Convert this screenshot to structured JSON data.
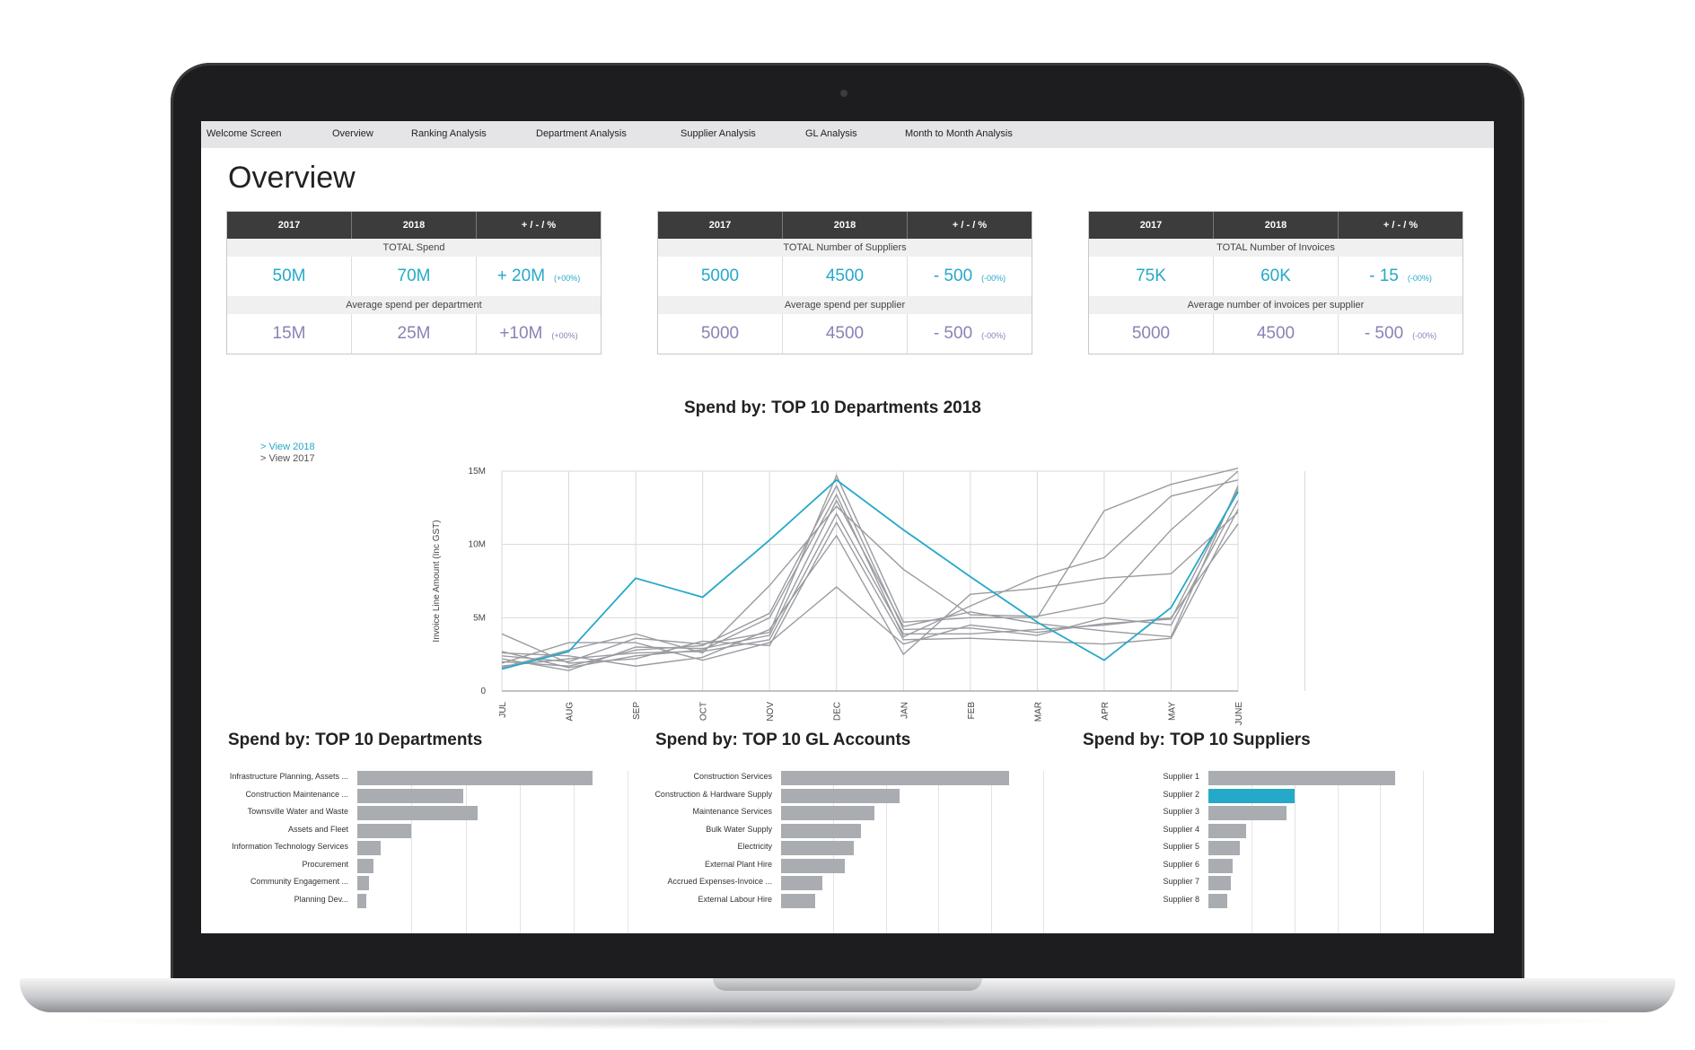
{
  "nav": [
    "Welcome Screen",
    "Overview",
    "Ranking Analysis",
    "Department Analysis",
    "Supplier Analysis",
    "GL Analysis",
    "Month to Month Analysis"
  ],
  "page_title": "Overview",
  "kpis": [
    {
      "headers": [
        "2017",
        "2018",
        "+ / - / %"
      ],
      "rows": [
        {
          "label": "TOTAL Spend",
          "v2017": "50M",
          "v2018": "70M",
          "delta": "+ 20M",
          "pct": "(+00%)"
        },
        {
          "label": "Average spend per department",
          "v2017": "15M",
          "v2018": "25M",
          "delta": "+10M",
          "pct": "(+00%)"
        }
      ]
    },
    {
      "headers": [
        "2017",
        "2018",
        "+ / - / %"
      ],
      "rows": [
        {
          "label": "TOTAL Number of Suppliers",
          "v2017": "5000",
          "v2018": "4500",
          "delta": "- 500",
          "pct": "(-00%)"
        },
        {
          "label": "Average spend per supplier",
          "v2017": "5000",
          "v2018": "4500",
          "delta": "- 500",
          "pct": "(-00%)"
        }
      ]
    },
    {
      "headers": [
        "2017",
        "2018",
        "+ / - / %"
      ],
      "rows": [
        {
          "label": "TOTAL Number of Invoices",
          "v2017": "75K",
          "v2018": "60K",
          "delta": "- 15",
          "pct": "(-00%)"
        },
        {
          "label": "Average number of invoices per supplier",
          "v2017": "5000",
          "v2018": "4500",
          "delta": "- 500",
          "pct": "(-00%)"
        }
      ]
    }
  ],
  "views": {
    "view2018": "> View 2018",
    "view2017": "> View 2017"
  },
  "colors": {
    "accent": "#25a9c9",
    "series": "#9a9ca1",
    "bar": "#a9acb1",
    "header": "#3c3c3c"
  },
  "chart_data": [
    {
      "type": "line",
      "title": "Spend by: TOP 10 Departments 2018",
      "ylabel": "Invoice Line Amount (Inc GST)",
      "y_ticks": [
        "0",
        "5M",
        "10M",
        "15M"
      ],
      "ylim": [
        0,
        15000000
      ],
      "categories": [
        "JUL",
        "AUG",
        "SEP",
        "OCT",
        "NOV",
        "DEC",
        "JAN",
        "FEB",
        "MAR",
        "APR",
        "MAY",
        "JUNE"
      ],
      "highlight": {
        "values": [
          1500000,
          2700000,
          7700000,
          6400000,
          10300000,
          14400000,
          11000000,
          7800000,
          4700000,
          2100000,
          5700000,
          13600000
        ]
      },
      "series": [
        {
          "values": [
            2400000,
            2000000,
            3600000,
            3200000,
            4000000,
            14700000,
            4700000,
            5000000,
            5000000,
            12300000,
            14100000,
            15200000
          ]
        },
        {
          "values": [
            2700000,
            1600000,
            2400000,
            2800000,
            5000000,
            13400000,
            3700000,
            5800000,
            7800000,
            9100000,
            13300000,
            14400000
          ]
        },
        {
          "values": [
            1600000,
            2800000,
            3900000,
            2600000,
            7200000,
            12600000,
            8300000,
            5200000,
            5100000,
            6000000,
            11000000,
            15000000
          ]
        },
        {
          "values": [
            2000000,
            1700000,
            2800000,
            3100000,
            5300000,
            14000000,
            4200000,
            4300000,
            3800000,
            5000000,
            4500000,
            13000000
          ]
        },
        {
          "values": [
            3900000,
            1900000,
            2200000,
            3400000,
            3100000,
            11500000,
            3500000,
            3600000,
            3400000,
            3200000,
            3600000,
            12400000
          ]
        },
        {
          "values": [
            2600000,
            2400000,
            1700000,
            2300000,
            4200000,
            10600000,
            2500000,
            6600000,
            7000000,
            7700000,
            8000000,
            12200000
          ]
        },
        {
          "values": [
            1900000,
            3300000,
            3300000,
            2100000,
            3300000,
            7100000,
            3200000,
            4500000,
            4000000,
            4600000,
            4900000,
            13800000
          ]
        },
        {
          "values": [
            2200000,
            1400000,
            3000000,
            2900000,
            3800000,
            13000000,
            4400000,
            5400000,
            4600000,
            4100000,
            3700000,
            14000000
          ]
        },
        {
          "values": [
            1700000,
            2200000,
            2600000,
            2700000,
            3500000,
            12100000,
            3900000,
            3900000,
            4200000,
            4500000,
            5000000,
            11400000
          ]
        }
      ]
    },
    {
      "type": "bar",
      "title": "Spend by: TOP 10 Departments",
      "categories": [
        "Infrastructure Planning, Assets ...",
        "Construction Maintenance ...",
        "Townsville Water and Waste",
        "Assets and Fleet",
        "Information Technology Services",
        "Procurement",
        "Community Engagement ...",
        "Planning Dev..."
      ],
      "values": [
        100,
        45,
        51,
        23,
        10,
        7,
        5,
        4
      ]
    },
    {
      "type": "bar",
      "title": "Spend by: TOP 10 GL Accounts",
      "categories": [
        "Construction Services",
        "Construction & Hardware Supply",
        "Maintenance Services",
        "Bulk Water Supply",
        "Electricity",
        "External Plant Hire",
        "Accrued Expenses-Invoice ...",
        "External Labour Hire"
      ],
      "values": [
        100,
        52,
        41,
        35,
        32,
        28,
        18,
        15
      ]
    },
    {
      "type": "bar",
      "title": "Spend by: TOP 10 Suppliers",
      "categories": [
        "Supplier 1",
        "Supplier 2",
        "Supplier 3",
        "Supplier 4",
        "Supplier 5",
        "Supplier 6",
        "Supplier 7",
        "Supplier 8"
      ],
      "values": [
        100,
        46,
        42,
        20,
        17,
        13,
        12,
        10
      ],
      "highlight_index": 1
    }
  ]
}
